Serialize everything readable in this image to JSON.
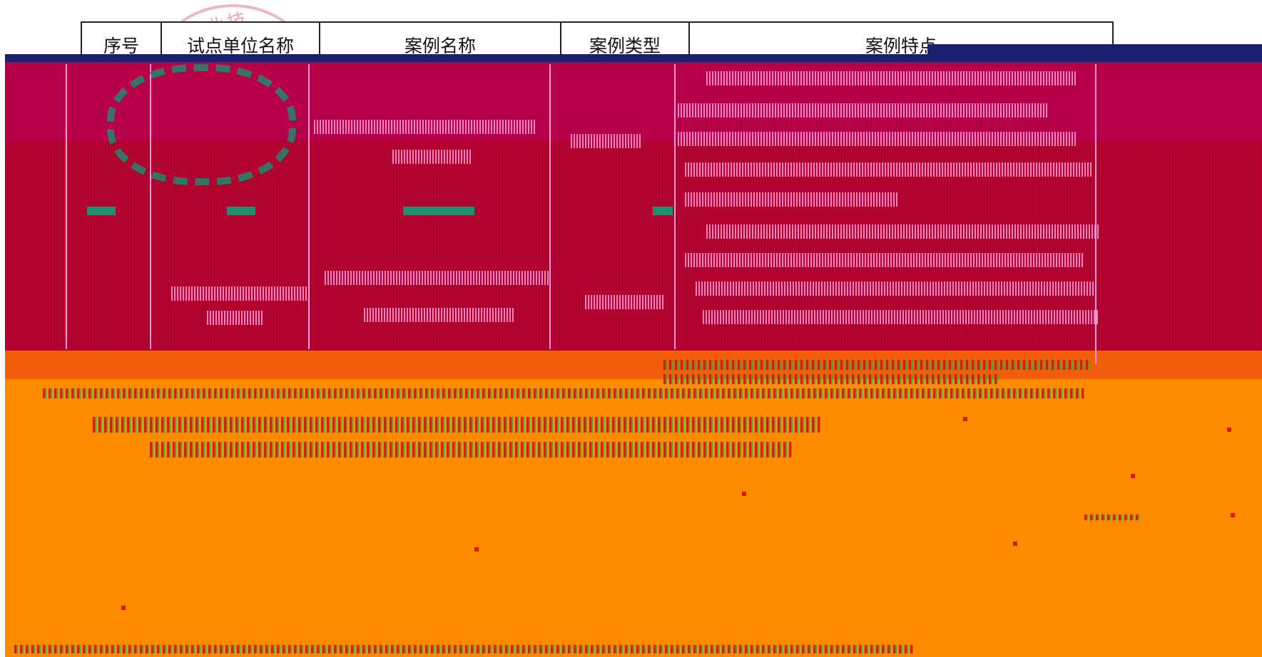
{
  "table_header": {
    "col_index": "序号",
    "col_unit": "试点单位名称",
    "col_case_name": "案例名称",
    "col_case_type": "案例类型",
    "col_case_feature": "案例特点"
  },
  "stamp": {
    "partial_text": "职业技",
    "color": "#e2789a"
  },
  "colors": {
    "navy": "#1b1f6e",
    "crimson": "#b0002b",
    "orange": "#ff8c00",
    "red_orange": "#f25e0c",
    "seal_teal": "#1f8d6e"
  }
}
